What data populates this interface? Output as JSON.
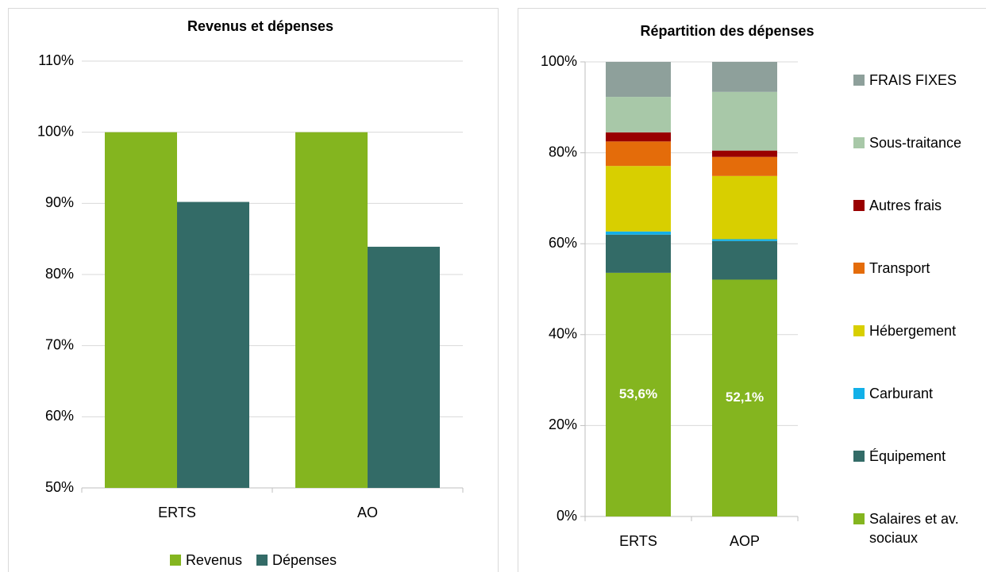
{
  "chart_data": [
    {
      "type": "bar",
      "title": "Revenus et dépenses",
      "categories": [
        "ERTS",
        "AO"
      ],
      "series": [
        {
          "name": "Revenus",
          "color": "#84b51f",
          "values": [
            100,
            100
          ]
        },
        {
          "name": "Dépenses",
          "color": "#336b67",
          "values": [
            90.2,
            83.9
          ]
        }
      ],
      "ylim": [
        50,
        110
      ],
      "yticks": [
        {
          "value": 50,
          "label": "50%"
        },
        {
          "value": 60,
          "label": "60%"
        },
        {
          "value": 70,
          "label": "70%"
        },
        {
          "value": 80,
          "label": "80%"
        },
        {
          "value": 90,
          "label": "90%"
        },
        {
          "value": 100,
          "label": "100%"
        },
        {
          "value": 110,
          "label": "110%"
        }
      ],
      "grid": true,
      "legend": "bottom"
    },
    {
      "type": "stacked_bar",
      "title": "Répartition des dépenses",
      "categories": [
        "ERTS",
        "AOP"
      ],
      "series": [
        {
          "name": "Salaires et av. sociaux",
          "color": "#84b51f",
          "values": [
            53.6,
            52.1
          ],
          "value_labels": [
            "53,6%",
            "52,1%"
          ]
        },
        {
          "name": "Équipement",
          "color": "#336b67",
          "values": [
            8.4,
            8.5
          ]
        },
        {
          "name": "Carburant",
          "color": "#12b0e8",
          "values": [
            0.7,
            0.4
          ]
        },
        {
          "name": "Hébergement",
          "color": "#d8cf00",
          "values": [
            14.4,
            13.9
          ]
        },
        {
          "name": "Transport",
          "color": "#e46c0a",
          "values": [
            5.4,
            4.2
          ]
        },
        {
          "name": "Autres frais",
          "color": "#990000",
          "values": [
            2.0,
            1.4
          ]
        },
        {
          "name": "Sous-traitance",
          "color": "#a8c8a8",
          "values": [
            7.8,
            12.9
          ]
        },
        {
          "name": "FRAIS FIXES",
          "color": "#8ea09b",
          "values": [
            7.7,
            6.6
          ]
        }
      ],
      "ylim": [
        0,
        100
      ],
      "yticks": [
        {
          "value": 0,
          "label": "0%"
        },
        {
          "value": 20,
          "label": "20%"
        },
        {
          "value": 40,
          "label": "40%"
        },
        {
          "value": 60,
          "label": "60%"
        },
        {
          "value": 80,
          "label": "80%"
        },
        {
          "value": 100,
          "label": "100%"
        }
      ],
      "grid": true,
      "legend": "right"
    }
  ]
}
